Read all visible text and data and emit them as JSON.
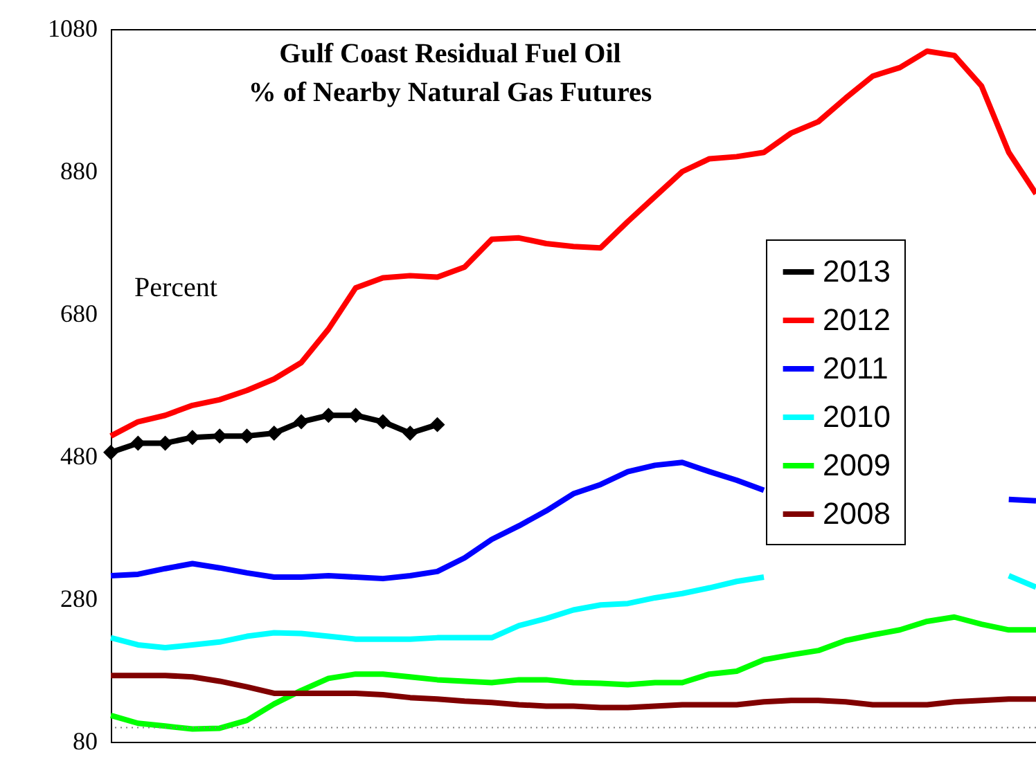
{
  "chart_data": {
    "type": "line",
    "title": "Gulf Coast Residual Fuel Oil\n% of Nearby Natural Gas Futures",
    "annotations": [
      "Percent"
    ],
    "categories": [
      null,
      null,
      null,
      null,
      null,
      null,
      null,
      null,
      null,
      null,
      null,
      null,
      null,
      null,
      null,
      null,
      null,
      null,
      null,
      null,
      null,
      null,
      null,
      null,
      null,
      null,
      null,
      null,
      null,
      null,
      null,
      null,
      null,
      null,
      null
    ],
    "series": [
      {
        "name": "2013",
        "color": "#000000",
        "marker": "diamond",
        "values": [
          486,
          499,
          499,
          507,
          509,
          509,
          513,
          529,
          538,
          538,
          529,
          513,
          525,
          null,
          null,
          null,
          null,
          null,
          null,
          null,
          null,
          null,
          null,
          null,
          null,
          null,
          null,
          null,
          null,
          null,
          null,
          null,
          null,
          null,
          null
        ]
      },
      {
        "name": "2012",
        "color": "#ff0000",
        "values": [
          509,
          529,
          538,
          552,
          560,
          573,
          589,
          612,
          659,
          717,
          731,
          734,
          732,
          746,
          785,
          787,
          779,
          775,
          773,
          810,
          845,
          880,
          898,
          901,
          907,
          934,
          950,
          983,
          1014,
          1026,
          1049,
          1043,
          1000,
          907,
          849
        ]
      },
      {
        "name": "2011",
        "color": "#0000ff",
        "values": [
          313,
          315,
          323,
          330,
          324,
          317,
          311,
          311,
          313,
          311,
          309,
          313,
          319,
          338,
          364,
          383,
          404,
          428,
          441,
          459,
          468,
          472,
          459,
          447,
          433,
          null,
          null,
          null,
          null,
          null,
          null,
          null,
          null,
          420,
          418
        ]
      },
      {
        "name": "2010",
        "color": "#00ffff",
        "values": [
          226,
          216,
          212,
          216,
          220,
          228,
          233,
          232,
          228,
          224,
          224,
          224,
          226,
          226,
          226,
          243,
          253,
          265,
          272,
          274,
          282,
          288,
          296,
          305,
          311,
          null,
          null,
          null,
          null,
          null,
          null,
          null,
          null,
          313,
          297
        ]
      },
      {
        "name": "2009",
        "color": "#00ff00",
        "values": [
          117,
          106,
          102,
          98,
          99,
          110,
          133,
          152,
          169,
          175,
          175,
          171,
          167,
          165,
          163,
          167,
          167,
          163,
          162,
          160,
          163,
          163,
          175,
          179,
          195,
          202,
          208,
          222,
          230,
          237,
          249,
          255,
          245,
          237,
          237
        ]
      },
      {
        "name": "2008",
        "color": "#800000",
        "values": [
          173,
          173,
          173,
          171,
          165,
          157,
          148,
          148,
          148,
          148,
          146,
          142,
          140,
          137,
          135,
          132,
          130,
          130,
          128,
          128,
          130,
          132,
          132,
          132,
          136,
          138,
          138,
          136,
          132,
          132,
          132,
          136,
          138,
          140,
          140
        ]
      }
    ],
    "ylim": [
      80,
      1080
    ],
    "yticks": [
      80,
      280,
      480,
      680,
      880,
      1080
    ],
    "grid": false,
    "legend": "right",
    "line_style": "solid",
    "ref_lines": [
      {
        "axis": "y",
        "value": 100,
        "label": null,
        "color": "#808080",
        "line_style": "dotted"
      }
    ]
  }
}
